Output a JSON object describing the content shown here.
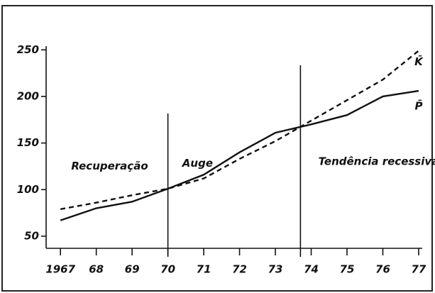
{
  "chart_data": {
    "type": "line",
    "x": [
      1967,
      1968,
      1969,
      1970,
      1971,
      1972,
      1973,
      1974,
      1975,
      1976,
      1977
    ],
    "series": [
      {
        "name": "P̄",
        "color": "#111111",
        "dash": false,
        "values": [
          67,
          80,
          87,
          101,
          116,
          140,
          161,
          170,
          180,
          200,
          206
        ]
      },
      {
        "name": "K̄",
        "color": "#111111",
        "dash": true,
        "values": [
          79,
          86,
          94,
          101,
          112,
          133,
          152,
          174,
          196,
          218,
          249
        ]
      }
    ],
    "annotations": [
      {
        "text": "Recuperação",
        "x": 1967.3,
        "y": 125
      },
      {
        "text": "Auge",
        "x": 1970.4,
        "y": 128
      },
      {
        "text": "Tendência recessiva",
        "x": 1974.2,
        "y": 130
      }
    ],
    "vlines": [
      1970,
      1973.7
    ],
    "xlim": [
      1966.6,
      1977.1
    ],
    "ylim": [
      37,
      254
    ],
    "xticks": [
      {
        "value": 1967,
        "label": "1967"
      },
      {
        "value": 1968,
        "label": "68"
      },
      {
        "value": 1969,
        "label": "69"
      },
      {
        "value": 1970,
        "label": "70"
      },
      {
        "value": 1971,
        "label": "71"
      },
      {
        "value": 1972,
        "label": "72"
      },
      {
        "value": 1973,
        "label": "73"
      },
      {
        "value": 1974,
        "label": "74"
      },
      {
        "value": 1975,
        "label": "75"
      },
      {
        "value": 1976,
        "label": "76"
      },
      {
        "value": 1977,
        "label": "77"
      }
    ],
    "yticks": [
      50,
      100,
      150,
      200,
      250
    ]
  }
}
